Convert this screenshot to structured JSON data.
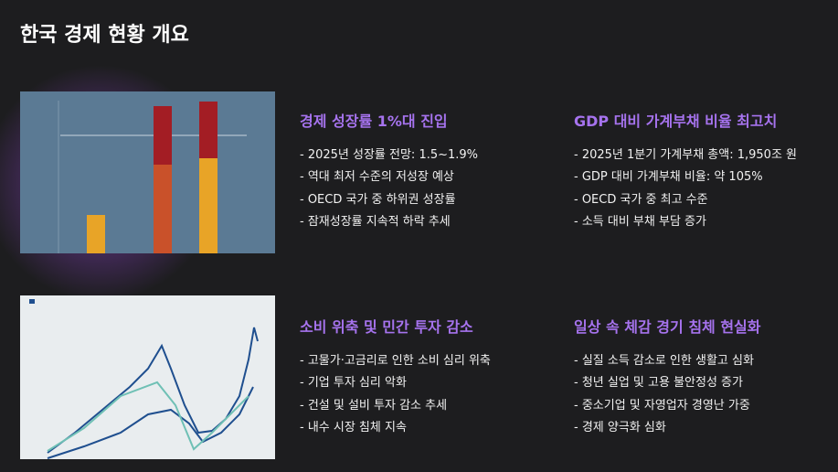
{
  "title": "한국 경제 현황 개요",
  "sections": [
    {
      "heading": "경제 성장률 1%대 진입",
      "items": [
        "- 2025년 성장률 전망: 1.5~1.9%",
        "- 역대 최저 수준의 저성장 예상",
        "- OECD 국가 중 하위권 성장률",
        "- 잠재성장률 지속적 하락 추세"
      ]
    },
    {
      "heading": "GDP 대비 가계부채 비율 최고치",
      "items": [
        "- 2025년 1분기 가계부채 총액: 1,950조 원",
        "- GDP 대비 가계부채 비율: 약 105%",
        "- OECD 국가 중 최고 수준",
        "- 소득 대비 부채 부담 증가"
      ]
    },
    {
      "heading": "소비 위축 및 민간 투자 감소",
      "items": [
        "- 고물가·고금리로 인한 소비 심리 위축",
        "- 기업 투자 심리 악화",
        "- 건설 및 설비 투자 감소 추세",
        "- 내수 시장 침체 지속"
      ]
    },
    {
      "heading": "일상 속 체감 경기 침체 현실화",
      "items": [
        "- 실질 소득 감소로 인한 생활고 심화",
        "- 청년 실업 및 고용 불안정성 증가",
        "- 중소기업 및 자영업자 경영난 가중",
        "- 경제 양극화 심화"
      ]
    }
  ]
}
